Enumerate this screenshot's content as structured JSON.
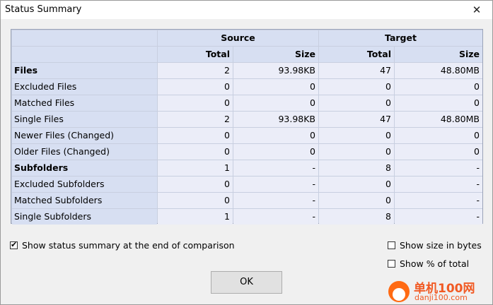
{
  "window": {
    "title": "Status Summary",
    "close_glyph": "✕"
  },
  "table": {
    "group_headers": {
      "source": "Source",
      "target": "Target"
    },
    "sub_headers": {
      "total": "Total",
      "size": "Size"
    },
    "rows": [
      {
        "label": "Files",
        "bold": true,
        "src_total": "2",
        "src_size": "93.98KB",
        "tgt_total": "47",
        "tgt_size": "48.80MB"
      },
      {
        "label": "Excluded Files",
        "bold": false,
        "src_total": "0",
        "src_size": "0",
        "tgt_total": "0",
        "tgt_size": "0"
      },
      {
        "label": "Matched Files",
        "bold": false,
        "src_total": "0",
        "src_size": "0",
        "tgt_total": "0",
        "tgt_size": "0"
      },
      {
        "label": "Single Files",
        "bold": false,
        "src_total": "2",
        "src_size": "93.98KB",
        "tgt_total": "47",
        "tgt_size": "48.80MB"
      },
      {
        "label": "Newer Files (Changed)",
        "bold": false,
        "src_total": "0",
        "src_size": "0",
        "tgt_total": "0",
        "tgt_size": "0"
      },
      {
        "label": "Older Files (Changed)",
        "bold": false,
        "src_total": "0",
        "src_size": "0",
        "tgt_total": "0",
        "tgt_size": "0"
      },
      {
        "label": "Subfolders",
        "bold": true,
        "src_total": "1",
        "src_size": "-",
        "tgt_total": "8",
        "tgt_size": "-"
      },
      {
        "label": "Excluded Subfolders",
        "bold": false,
        "src_total": "0",
        "src_size": "-",
        "tgt_total": "0",
        "tgt_size": "-"
      },
      {
        "label": "Matched Subfolders",
        "bold": false,
        "src_total": "0",
        "src_size": "-",
        "tgt_total": "0",
        "tgt_size": "-"
      },
      {
        "label": "Single Subfolders",
        "bold": false,
        "src_total": "1",
        "src_size": "-",
        "tgt_total": "8",
        "tgt_size": "-"
      }
    ]
  },
  "options": {
    "show_summary": {
      "label": "Show status summary at the end of comparison",
      "checked": true
    },
    "show_bytes": {
      "label": "Show size in bytes",
      "checked": false
    },
    "show_percent": {
      "label": "Show % of total",
      "checked": false
    }
  },
  "buttons": {
    "ok": "OK"
  },
  "watermark": {
    "text_cn": "单机100网",
    "url": "danji100.com"
  }
}
